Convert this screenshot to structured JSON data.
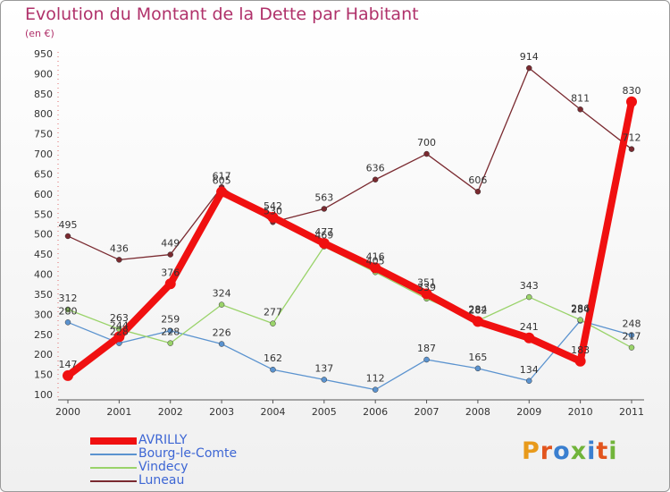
{
  "title": "Evolution du Montant de la Dette par Habitant",
  "subtitle": "(en €)",
  "logo": {
    "text": "Proxiti",
    "letter_colors": [
      "#e89a1b",
      "#e2551e",
      "#3a7fd0",
      "#71b43a",
      "#3a7fd0",
      "#e2551e",
      "#71b43a"
    ]
  },
  "chart_data": {
    "type": "line",
    "x": [
      "2000",
      "2001",
      "2002",
      "2003",
      "2004",
      "2005",
      "2006",
      "2007",
      "2008",
      "2009",
      "2010",
      "2011"
    ],
    "ylim": [
      100,
      950
    ],
    "yticks": [
      100,
      150,
      200,
      250,
      300,
      350,
      400,
      450,
      500,
      550,
      600,
      650,
      700,
      750,
      800,
      850,
      900,
      950
    ],
    "grid": false,
    "legend_position": "bottom-left",
    "series": [
      {
        "name": "Luneau",
        "color": "#7a2a30",
        "values": [
          495,
          436,
          449,
          617,
          530,
          563,
          636,
          700,
          606,
          914,
          811,
          712
        ]
      },
      {
        "name": "Bourg-le-Comte",
        "color": "#5b93cf",
        "values": [
          280,
          228,
          259,
          226,
          162,
          137,
          112,
          187,
          165,
          134,
          284,
          248
        ]
      },
      {
        "name": "Vindecy",
        "color": "#9ad36a",
        "values": [
          312,
          263,
          228,
          324,
          277,
          469,
          405,
          339,
          284,
          343,
          286,
          217
        ]
      },
      {
        "name": "AVRILLY",
        "color": "#f01010",
        "values": [
          147,
          244,
          376,
          605,
          542,
          477,
          416,
          351,
          282,
          241,
          183,
          830
        ]
      }
    ]
  }
}
